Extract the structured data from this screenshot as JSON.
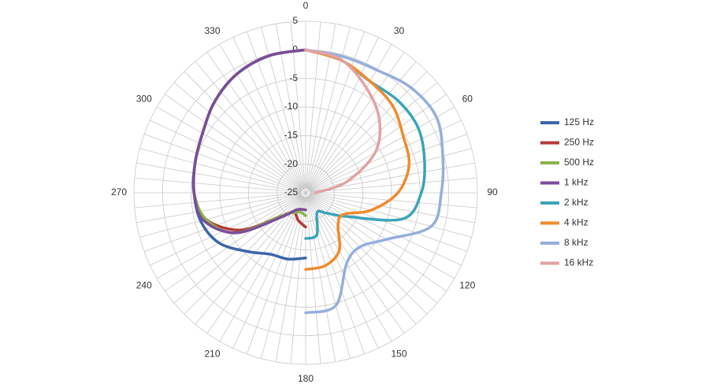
{
  "chart_data": {
    "type": "polar",
    "theta": [
      0,
      15,
      30,
      45,
      60,
      75,
      90,
      105,
      120,
      135,
      150,
      165,
      180,
      195,
      210,
      225,
      240,
      255,
      270,
      285,
      300,
      315,
      330,
      345,
      360
    ],
    "rlim": [
      -25,
      5
    ],
    "rticks": [
      -25,
      -20,
      -15,
      -10,
      -5,
      0,
      5
    ],
    "thetaticks": [
      0,
      30,
      60,
      90,
      120,
      150,
      180,
      210,
      240,
      270,
      300,
      330
    ],
    "grid": true,
    "legend": "right",
    "series": [
      {
        "name": "125 Hz",
        "color": "#3c66aa",
        "values": [
          null,
          null,
          null,
          null,
          null,
          null,
          null,
          null,
          null,
          null,
          null,
          null,
          -13.6,
          -13,
          -12.6,
          -10.5,
          -7.5,
          -6,
          -5.5,
          -5,
          -4.2,
          -2.5,
          -1,
          -0.2,
          0
        ]
      },
      {
        "name": "250 Hz",
        "color": "#b23b37",
        "values": [
          null,
          null,
          null,
          null,
          null,
          null,
          null,
          null,
          null,
          null,
          null,
          null,
          -19,
          -20,
          -21,
          -19.5,
          -12,
          -7,
          -5.5,
          -5,
          -4.2,
          -2.5,
          -1,
          -0.2,
          0
        ]
      },
      {
        "name": "500 Hz",
        "color": "#8db24c",
        "values": [
          null,
          null,
          null,
          null,
          null,
          null,
          null,
          null,
          null,
          null,
          null,
          null,
          -21,
          -21.5,
          -21,
          -19.5,
          -11,
          -7,
          -5.5,
          -5,
          -4.2,
          -2.5,
          -1,
          -0.2,
          0
        ]
      },
      {
        "name": "1 kHz",
        "color": "#7b4d9b",
        "values": [
          null,
          null,
          null,
          null,
          null,
          null,
          null,
          null,
          null,
          null,
          null,
          null,
          -22,
          -22,
          -21.5,
          -19,
          -11,
          -6.5,
          -5.5,
          -5,
          -4.2,
          -2.5,
          -1,
          -0.2,
          0
        ]
      },
      {
        "name": "2 kHz",
        "color": "#3ba4b9",
        "values": [
          0,
          -1,
          -2.5,
          -2.2,
          -2.3,
          -3.5,
          -4.8,
          -7.4,
          -16.7,
          -20,
          -21,
          -17.4,
          -17,
          null,
          null,
          null,
          null,
          null,
          null,
          null,
          null,
          null,
          null,
          null,
          null
        ]
      },
      {
        "name": "4 kHz",
        "color": "#f08b2d",
        "values": [
          0,
          -1,
          -2.5,
          -3.5,
          -5.3,
          -6.3,
          -8.9,
          -13.2,
          -17.4,
          -17,
          -13.3,
          -11.8,
          -11.6,
          null,
          null,
          null,
          null,
          null,
          null,
          null,
          null,
          null,
          null,
          null,
          null
        ]
      },
      {
        "name": "8 kHz",
        "color": "#95afdc",
        "values": [
          0,
          -0.3,
          -0.2,
          1,
          1.4,
          -0.2,
          -1.3,
          -2.3,
          -8.7,
          -11.6,
          -10.7,
          -4.6,
          -4,
          null,
          null,
          null,
          null,
          null,
          null,
          null,
          null,
          null,
          null,
          null,
          null
        ]
      },
      {
        "name": "16 kHz",
        "color": "#e2a2a2",
        "values": [
          0,
          -0.9,
          -3.8,
          -6.8,
          -11,
          -17.6,
          -23.3,
          null,
          null,
          null,
          null,
          null,
          null,
          null,
          null,
          null,
          null,
          null,
          null,
          null,
          null,
          null,
          null,
          null,
          null
        ]
      }
    ]
  }
}
